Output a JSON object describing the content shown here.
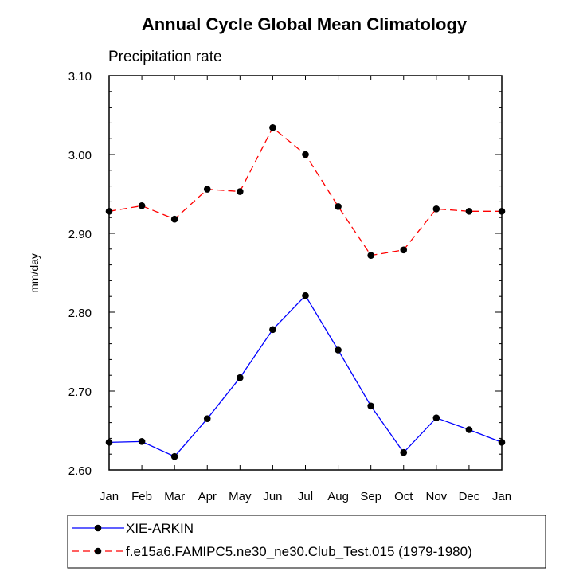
{
  "chart_data": {
    "type": "line",
    "title": "Annual Cycle Global Mean Climatology",
    "subtitle": "Precipitation rate",
    "xlabel": "",
    "ylabel": "mm/day",
    "categories": [
      "Jan",
      "Feb",
      "Mar",
      "Apr",
      "May",
      "Jun",
      "Jul",
      "Aug",
      "Sep",
      "Oct",
      "Nov",
      "Dec",
      "Jan"
    ],
    "ylim": [
      2.6,
      3.1
    ],
    "yticks": [
      "2.60",
      "2.70",
      "2.80",
      "2.90",
      "3.00",
      "3.10"
    ],
    "ytick_values": [
      2.6,
      2.7,
      2.8,
      2.9,
      3.0,
      3.1
    ],
    "grid": false,
    "legend_position": "bottom",
    "series": [
      {
        "name": "XIE-ARKIN",
        "values": [
          2.635,
          2.636,
          2.617,
          2.665,
          2.717,
          2.778,
          2.821,
          2.752,
          2.681,
          2.622,
          2.666,
          2.651,
          2.635
        ],
        "color": "#0000ff",
        "dash": "solid",
        "marker": "filled-circle"
      },
      {
        "name": "f.e15a6.FAMIPC5.ne30_ne30.Club_Test.015 (1979-1980)",
        "values": [
          2.928,
          2.935,
          2.918,
          2.956,
          2.953,
          3.034,
          3.0,
          2.934,
          2.872,
          2.879,
          2.931,
          2.928,
          2.928
        ],
        "color": "#ff0000",
        "dash": "dashed",
        "marker": "filled-circle"
      }
    ]
  }
}
